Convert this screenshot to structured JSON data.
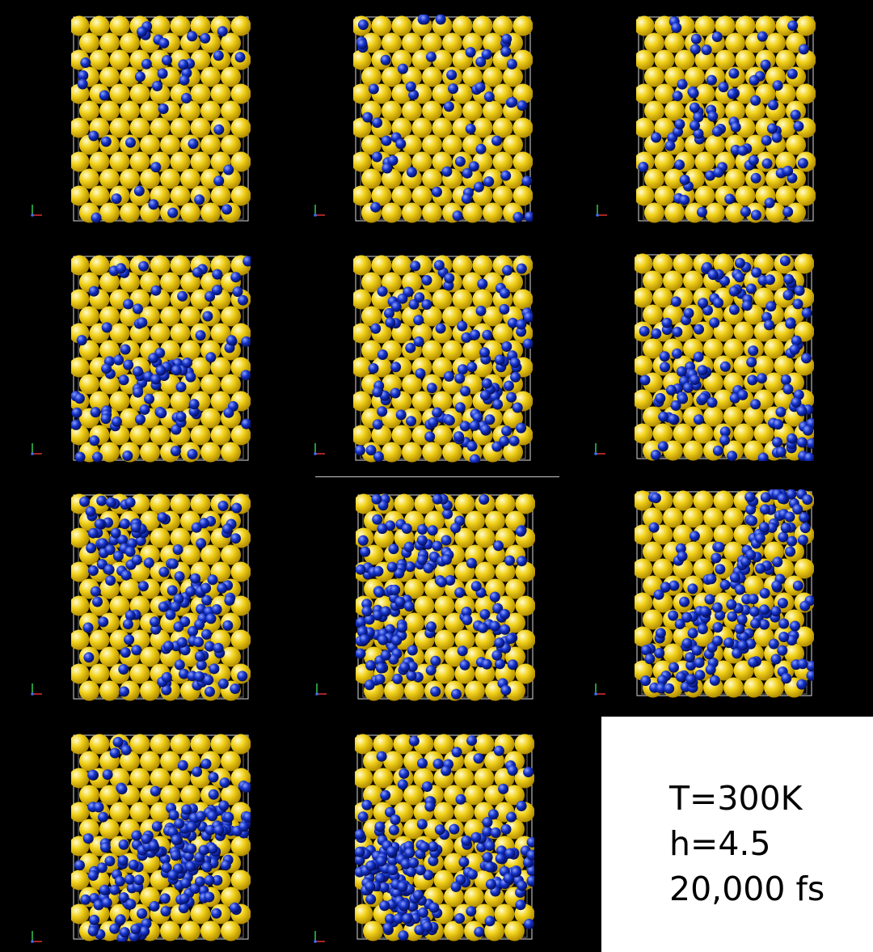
{
  "colors": {
    "background": "#000000",
    "substrate_atom": "#f2d21a",
    "adsorbate_atom": "#1432c8",
    "box_edge": "#d8d8d8",
    "legend_background": "#ffffff"
  },
  "snapshots": [
    {
      "index": 1,
      "adsorbate_level": 0
    },
    {
      "index": 2,
      "adsorbate_level": 1
    },
    {
      "index": 3,
      "adsorbate_level": 2
    },
    {
      "index": 4,
      "adsorbate_level": 3
    },
    {
      "index": 5,
      "adsorbate_level": 4
    },
    {
      "index": 6,
      "adsorbate_level": 5
    },
    {
      "index": 7,
      "adsorbate_level": 6
    },
    {
      "index": 8,
      "adsorbate_level": 7
    },
    {
      "index": 9,
      "adsorbate_level": 8
    },
    {
      "index": 10,
      "adsorbate_level": 9
    },
    {
      "index": 11,
      "adsorbate_level": 10
    }
  ],
  "axis_icon": "xyz-axis-triad-icon",
  "legend": {
    "temperature": "T=300K",
    "height": "h=4.5",
    "time": "20,000 fs"
  }
}
